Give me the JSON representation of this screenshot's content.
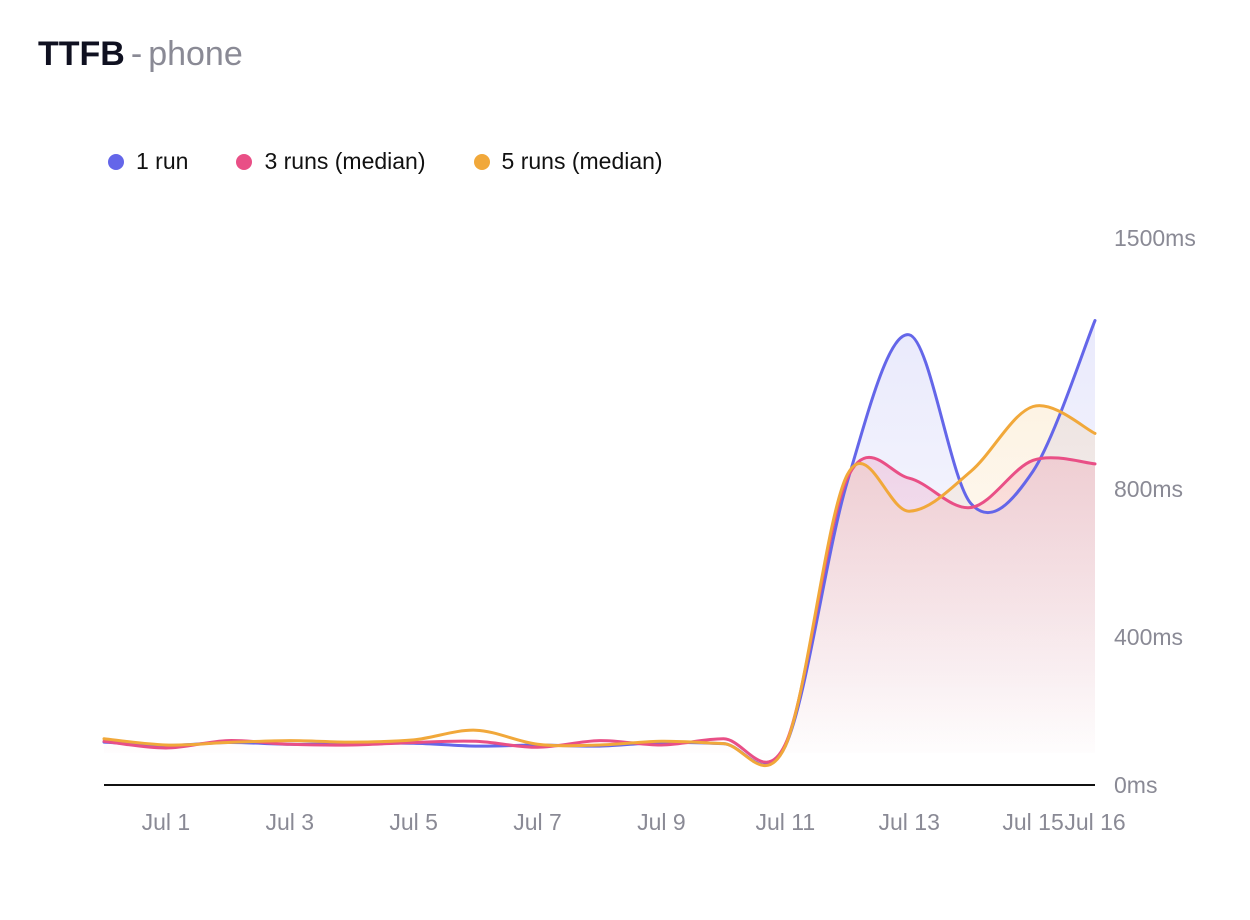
{
  "title": {
    "main": "TTFB",
    "separator": "-",
    "sub": "phone"
  },
  "legend": [
    {
      "label": "1 run",
      "color": "#6466e9"
    },
    {
      "label": "3 runs (median)",
      "color": "#e94f86"
    },
    {
      "label": "5 runs (median)",
      "color": "#f1a83a"
    }
  ],
  "chart_data": {
    "type": "line",
    "x": [
      "Jun 30",
      "Jul 1",
      "Jul 2",
      "Jul 3",
      "Jul 4",
      "Jul 5",
      "Jul 6",
      "Jul 7",
      "Jul 8",
      "Jul 9",
      "Jul 10",
      "Jul 11",
      "Jul 12",
      "Jul 13",
      "Jul 14",
      "Jul 15",
      "Jul 16"
    ],
    "x_tick_labels": [
      "Jul 1",
      "Jul 3",
      "Jul 5",
      "Jul 7",
      "Jul 9",
      "Jul 11",
      "Jul 13",
      "Jul 15",
      "Jul 16"
    ],
    "y_tick_labels": [
      "1500ms",
      "800ms",
      "400ms",
      "0ms"
    ],
    "y_ticks": [
      1500,
      800,
      400,
      0
    ],
    "ylim": [
      0,
      1500
    ],
    "legend_position": "top-left",
    "y_axis_position": "right",
    "series": [
      {
        "name": "1 run",
        "color": "#6466e9",
        "values": [
          116,
          107,
          115,
          110,
          112,
          113,
          105,
          108,
          105,
          115,
          112,
          105,
          820,
          1230,
          760,
          850,
          1270
        ]
      },
      {
        "name": "3 runs (median)",
        "color": "#e94f86",
        "values": [
          118,
          100,
          120,
          110,
          108,
          115,
          118,
          102,
          120,
          108,
          125,
          110,
          830,
          830,
          750,
          880,
          870
        ]
      },
      {
        "name": "5 runs (median)",
        "color": "#f1a83a",
        "values": [
          125,
          108,
          115,
          120,
          116,
          122,
          148,
          110,
          108,
          118,
          112,
          105,
          840,
          740,
          850,
          1030,
          955
        ]
      }
    ]
  }
}
